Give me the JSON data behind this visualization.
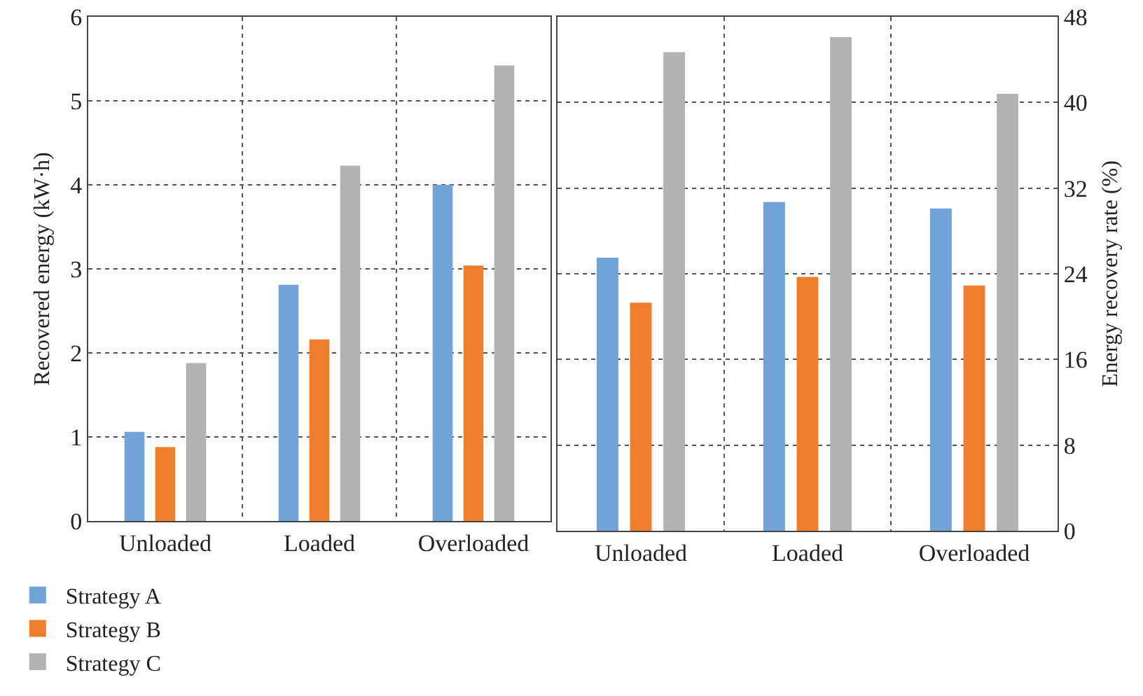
{
  "chart_data": [
    {
      "type": "bar",
      "ylabel": "Recovered energy (kW·h)",
      "categories": [
        "Unloaded",
        "Loaded",
        "Overloaded"
      ],
      "series": [
        {
          "name": "Strategy A",
          "color": "#71a3d9",
          "values": [
            1.06,
            2.81,
            4.0
          ]
        },
        {
          "name": "Strategy B",
          "color": "#ee7d2c",
          "values": [
            0.88,
            2.16,
            3.04
          ]
        },
        {
          "name": "Strategy C",
          "color": "#b3b3b3",
          "values": [
            1.88,
            4.23,
            5.42
          ]
        }
      ],
      "ylim": [
        0,
        6
      ],
      "yticks": [
        0,
        1,
        2,
        3,
        4,
        5,
        6
      ],
      "grid": true,
      "legend": "bottom left"
    },
    {
      "type": "bar",
      "y2label": "Energy recovery rate (%)",
      "categories": [
        "Unloaded",
        "Loaded",
        "Overloaded"
      ],
      "series": [
        {
          "color": "#71a3d9",
          "axis": "y2",
          "values": [
            25.5,
            30.7,
            30.1
          ]
        },
        {
          "color": "#ee7d2c",
          "axis": "y2",
          "values": [
            21.3,
            23.7,
            22.9
          ]
        },
        {
          "color": "#b3b3b3",
          "axis": "y2",
          "values": [
            44.7,
            46.1,
            40.8
          ]
        }
      ],
      "y2lim": [
        0,
        48
      ],
      "y2ticks": [
        0,
        8,
        16,
        24,
        32,
        40,
        48
      ],
      "grid": true
    }
  ]
}
